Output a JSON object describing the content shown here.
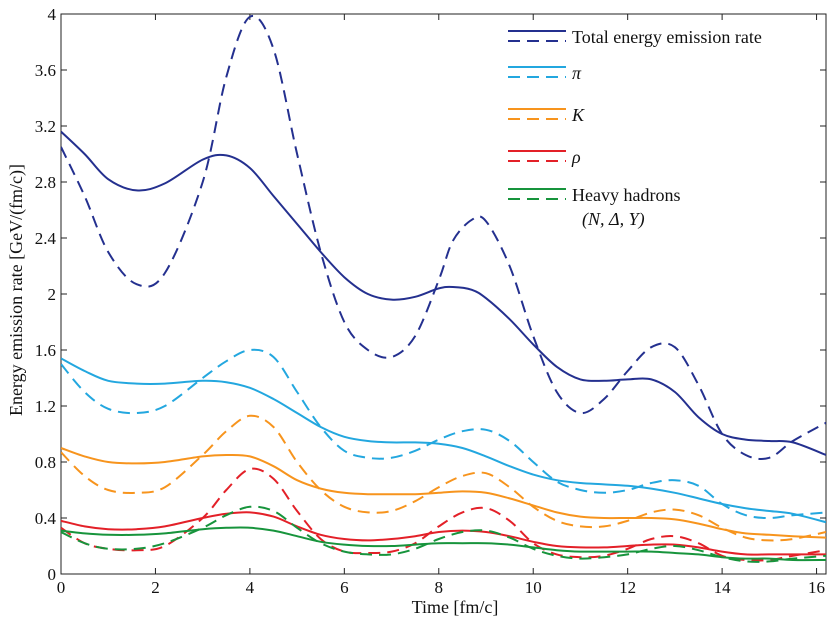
{
  "chart_data": {
    "type": "line",
    "title": "",
    "xlabel": "Time   [fm/c]",
    "ylabel": "Energy emission rate   [GeV/(fm/c)]",
    "xlim": [
      0,
      16.2
    ],
    "ylim": [
      0,
      4
    ],
    "xticks": [
      0,
      2,
      4,
      6,
      8,
      10,
      12,
      14,
      16
    ],
    "xtick_labels": [
      "0",
      "2",
      "4",
      "6",
      "8",
      "10",
      "12",
      "14",
      "16"
    ],
    "yticks": [
      0,
      0.4,
      0.8,
      1.2,
      1.6,
      2,
      2.4,
      2.8,
      3.2,
      3.6,
      4
    ],
    "ytick_labels": [
      "0",
      "0.4",
      "0.8",
      "1.2",
      "1.6",
      "2",
      "2.4",
      "2.8",
      "3.2",
      "3.6",
      "4"
    ],
    "legend_position": "top-right",
    "series": [
      {
        "name": "Total energy emission rate",
        "color": "#24308f",
        "x": [
          0,
          0.5,
          1,
          1.6,
          2.2,
          3,
          3.5,
          4,
          4.5,
          5,
          5.5,
          6,
          6.5,
          7,
          7.5,
          8,
          8.3,
          8.7,
          9,
          9.5,
          10,
          10.5,
          11,
          11.5,
          12,
          12.5,
          13,
          13.5,
          14,
          14.5,
          15,
          15.5,
          16.2
        ],
        "solid": [
          3.16,
          3.0,
          2.82,
          2.74,
          2.79,
          2.96,
          2.99,
          2.9,
          2.7,
          2.5,
          2.3,
          2.12,
          2.0,
          1.96,
          1.98,
          2.04,
          2.05,
          2.03,
          1.97,
          1.82,
          1.64,
          1.48,
          1.39,
          1.38,
          1.39,
          1.39,
          1.3,
          1.12,
          1.0,
          0.96,
          0.95,
          0.94,
          0.85
        ],
        "dashed": [
          3.05,
          2.7,
          2.3,
          2.07,
          2.15,
          2.8,
          3.55,
          3.98,
          3.75,
          3.0,
          2.3,
          1.8,
          1.6,
          1.55,
          1.7,
          2.1,
          2.38,
          2.53,
          2.52,
          2.2,
          1.7,
          1.3,
          1.15,
          1.25,
          1.45,
          1.62,
          1.62,
          1.35,
          1.0,
          0.85,
          0.83,
          0.95,
          1.08
        ]
      },
      {
        "name": "π",
        "color": "#23a7df",
        "x": [
          0,
          0.5,
          1,
          1.6,
          2.2,
          3,
          3.5,
          4,
          4.5,
          5,
          5.5,
          6,
          6.5,
          7,
          7.5,
          8,
          8.5,
          9,
          9.5,
          10,
          10.5,
          11,
          11.5,
          12,
          12.5,
          13,
          13.5,
          14,
          14.5,
          15,
          15.5,
          16.2
        ],
        "solid": [
          1.54,
          1.45,
          1.38,
          1.36,
          1.36,
          1.38,
          1.37,
          1.33,
          1.25,
          1.15,
          1.05,
          0.98,
          0.95,
          0.94,
          0.94,
          0.93,
          0.9,
          0.84,
          0.77,
          0.71,
          0.67,
          0.65,
          0.64,
          0.63,
          0.61,
          0.58,
          0.54,
          0.5,
          0.47,
          0.45,
          0.43,
          0.37
        ],
        "dashed": [
          1.5,
          1.3,
          1.18,
          1.15,
          1.2,
          1.4,
          1.52,
          1.6,
          1.55,
          1.3,
          1.05,
          0.88,
          0.83,
          0.83,
          0.88,
          0.96,
          1.02,
          1.03,
          0.95,
          0.8,
          0.66,
          0.6,
          0.58,
          0.6,
          0.65,
          0.67,
          0.63,
          0.5,
          0.42,
          0.4,
          0.42,
          0.44
        ]
      },
      {
        "name": "K",
        "color": "#f7941d",
        "x": [
          0,
          0.5,
          1,
          1.6,
          2.2,
          3,
          3.5,
          4,
          4.5,
          5,
          5.5,
          6,
          6.5,
          7,
          7.5,
          8,
          8.5,
          9,
          9.5,
          10,
          10.5,
          11,
          11.5,
          12,
          12.5,
          13,
          13.5,
          14,
          14.5,
          15,
          15.5,
          16.2
        ],
        "solid": [
          0.9,
          0.84,
          0.8,
          0.79,
          0.8,
          0.84,
          0.85,
          0.84,
          0.77,
          0.67,
          0.61,
          0.58,
          0.57,
          0.57,
          0.57,
          0.58,
          0.59,
          0.58,
          0.54,
          0.49,
          0.44,
          0.41,
          0.4,
          0.4,
          0.4,
          0.39,
          0.36,
          0.32,
          0.29,
          0.28,
          0.27,
          0.26
        ],
        "dashed": [
          0.87,
          0.7,
          0.6,
          0.58,
          0.62,
          0.85,
          1.02,
          1.13,
          1.05,
          0.8,
          0.6,
          0.48,
          0.44,
          0.45,
          0.52,
          0.62,
          0.7,
          0.72,
          0.62,
          0.48,
          0.38,
          0.34,
          0.34,
          0.38,
          0.44,
          0.46,
          0.42,
          0.33,
          0.26,
          0.24,
          0.25,
          0.3
        ]
      },
      {
        "name": "ρ",
        "color": "#e32028",
        "x": [
          0,
          0.5,
          1,
          1.6,
          2.2,
          3,
          3.5,
          4,
          4.5,
          5,
          5.5,
          6,
          6.5,
          7,
          7.5,
          8,
          8.5,
          9,
          9.5,
          10,
          10.5,
          11,
          11.5,
          12,
          12.5,
          13,
          13.5,
          14,
          14.5,
          15,
          15.5,
          16.2
        ],
        "solid": [
          0.38,
          0.34,
          0.32,
          0.32,
          0.34,
          0.4,
          0.43,
          0.44,
          0.41,
          0.34,
          0.28,
          0.25,
          0.24,
          0.25,
          0.27,
          0.3,
          0.31,
          0.3,
          0.27,
          0.23,
          0.2,
          0.19,
          0.19,
          0.2,
          0.21,
          0.21,
          0.19,
          0.16,
          0.14,
          0.14,
          0.14,
          0.14
        ],
        "dashed": [
          0.33,
          0.22,
          0.18,
          0.17,
          0.2,
          0.4,
          0.6,
          0.75,
          0.68,
          0.45,
          0.25,
          0.16,
          0.15,
          0.16,
          0.22,
          0.34,
          0.44,
          0.47,
          0.38,
          0.22,
          0.14,
          0.12,
          0.13,
          0.18,
          0.25,
          0.27,
          0.22,
          0.13,
          0.1,
          0.1,
          0.13,
          0.17
        ]
      },
      {
        "name": "Heavy hadrons (N, Δ, Y)",
        "color": "#17943c",
        "x": [
          0,
          0.5,
          1,
          1.6,
          2.2,
          3,
          3.5,
          4,
          4.5,
          5,
          5.5,
          6,
          6.5,
          7,
          7.5,
          8,
          8.5,
          9,
          9.5,
          10,
          10.5,
          11,
          11.5,
          12,
          12.5,
          13,
          13.5,
          14,
          14.5,
          15,
          15.5,
          16.2
        ],
        "solid": [
          0.31,
          0.29,
          0.28,
          0.28,
          0.29,
          0.32,
          0.33,
          0.33,
          0.31,
          0.27,
          0.23,
          0.21,
          0.2,
          0.2,
          0.21,
          0.22,
          0.22,
          0.22,
          0.21,
          0.19,
          0.17,
          0.16,
          0.16,
          0.16,
          0.16,
          0.15,
          0.14,
          0.12,
          0.11,
          0.11,
          0.1,
          0.1
        ],
        "dashed": [
          0.3,
          0.22,
          0.18,
          0.18,
          0.22,
          0.33,
          0.42,
          0.48,
          0.45,
          0.33,
          0.22,
          0.16,
          0.14,
          0.14,
          0.18,
          0.25,
          0.3,
          0.31,
          0.26,
          0.18,
          0.13,
          0.11,
          0.12,
          0.14,
          0.18,
          0.2,
          0.17,
          0.12,
          0.09,
          0.09,
          0.11,
          0.13
        ]
      }
    ],
    "legend": [
      {
        "label": "Total energy emission rate",
        "label2": ""
      },
      {
        "label": "π",
        "label2": ""
      },
      {
        "label": "K",
        "label2": ""
      },
      {
        "label": "ρ",
        "label2": ""
      },
      {
        "label": "Heavy hadrons",
        "label2": "(N, Δ, Y)"
      }
    ]
  }
}
